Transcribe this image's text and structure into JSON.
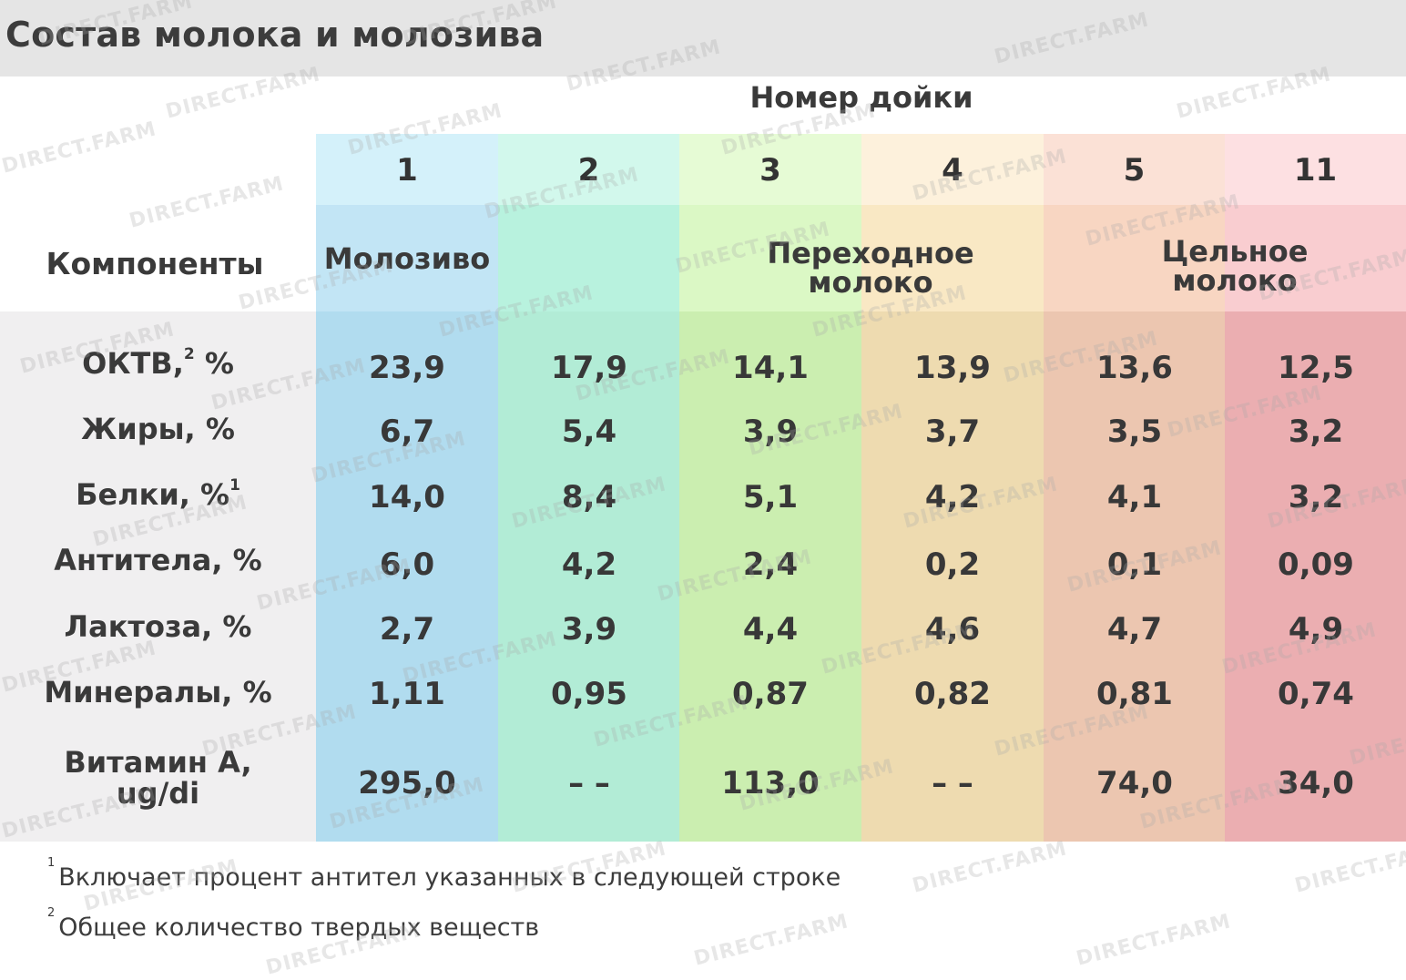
{
  "title": "Состав молока и молозива",
  "group_header": "Номер дойки",
  "components_header": "Компоненты",
  "columns": [
    {
      "number": "1",
      "top": "#d4f1fa",
      "mid": "#c2e5f5",
      "data": "#b1dcef"
    },
    {
      "number": "2",
      "top": "#d2f8ec",
      "mid": "#b8f2de",
      "data": "#b2ecd6"
    },
    {
      "number": "3",
      "top": "#e6fbd5",
      "mid": "#dbf8c5",
      "data": "#cbeeb0"
    },
    {
      "number": "4",
      "top": "#fdf1dc",
      "mid": "#f9e8c4",
      "data": "#eedbb0"
    },
    {
      "number": "5",
      "top": "#fbe1d6",
      "mid": "#f8d6c2",
      "data": "#ecc6b0"
    },
    {
      "number": "11",
      "top": "#fde0e2",
      "mid": "#f9cdd0",
      "data": "#ebaeb1"
    }
  ],
  "stages": [
    {
      "label": "Молозиво",
      "spans": "1"
    },
    {
      "label": "Переходное молоко",
      "line1": "Переходное",
      "line2": "молоко",
      "spans": "3-4"
    },
    {
      "label": "Цельное молоко",
      "line1": "Цельное",
      "line2": "молоко",
      "spans": "5-11"
    }
  ],
  "rows": [
    {
      "label": "ОКТВ, %",
      "label_main": "ОКТВ,",
      "sup": "2",
      "label_tail": "%",
      "values": [
        "23,9",
        "17,9",
        "14,1",
        "13,9",
        "13,6",
        "12,5"
      ]
    },
    {
      "label": "Жиры, %",
      "values": [
        "6,7",
        "5,4",
        "3,9",
        "3,7",
        "3,5",
        "3,2"
      ]
    },
    {
      "label": "Белки, %",
      "label_main": "Белки, %",
      "sup": "1",
      "values": [
        "14,0",
        "8,4",
        "5,1",
        "4,2",
        "4,1",
        "3,2"
      ]
    },
    {
      "label": "Антитела, %",
      "values": [
        "6,0",
        "4,2",
        "2,4",
        "0,2",
        "0,1",
        "0,09"
      ]
    },
    {
      "label": "Лактоза, %",
      "values": [
        "2,7",
        "3,9",
        "4,4",
        "4,6",
        "4,7",
        "4,9"
      ]
    },
    {
      "label": "Минералы, %",
      "values": [
        "1,11",
        "0,95",
        "0,87",
        "0,82",
        "0,81",
        "0,74"
      ]
    },
    {
      "label": "Витамин A, ug/di",
      "line1": "Витамин A,",
      "line2": "ug/di",
      "values": [
        "295,0",
        "– –",
        "113,0",
        "– –",
        "74,0",
        "34,0"
      ]
    }
  ],
  "footnotes": [
    {
      "mark": "1",
      "text": "Включает процент антител указанных в следующей строке"
    },
    {
      "mark": "2",
      "text": "Общее количество твердых веществ"
    }
  ],
  "watermark": "DIRECT.FARM",
  "chart_data": {
    "type": "table",
    "title": "Состав молока и молозива",
    "column_group_label": "Номер дойки",
    "row_header_label": "Компоненты",
    "categories": [
      "1",
      "2",
      "3",
      "4",
      "5",
      "11"
    ],
    "stage_groups": [
      {
        "name": "Молозиво",
        "columns": [
          "1"
        ]
      },
      {
        "name": "Переходное молоко",
        "columns": [
          "3",
          "4"
        ]
      },
      {
        "name": "Цельное молоко",
        "columns": [
          "5",
          "11"
        ]
      }
    ],
    "series": [
      {
        "name": "ОКТВ, %",
        "values": [
          23.9,
          17.9,
          14.1,
          13.9,
          13.6,
          12.5
        ]
      },
      {
        "name": "Жиры, %",
        "values": [
          6.7,
          5.4,
          3.9,
          3.7,
          3.5,
          3.2
        ]
      },
      {
        "name": "Белки, %",
        "values": [
          14.0,
          8.4,
          5.1,
          4.2,
          4.1,
          3.2
        ]
      },
      {
        "name": "Антитела, %",
        "values": [
          6.0,
          4.2,
          2.4,
          0.2,
          0.1,
          0.09
        ]
      },
      {
        "name": "Лактоза, %",
        "values": [
          2.7,
          3.9,
          4.4,
          4.6,
          4.7,
          4.9
        ]
      },
      {
        "name": "Минералы, %",
        "values": [
          1.11,
          0.95,
          0.87,
          0.82,
          0.81,
          0.74
        ]
      },
      {
        "name": "Витамин A, ug/di",
        "values": [
          295.0,
          null,
          113.0,
          null,
          74.0,
          34.0
        ]
      }
    ],
    "footnotes": [
      "1 Включает процент антител указанных в следующей строке",
      "2 Общее количество твердых веществ"
    ]
  }
}
